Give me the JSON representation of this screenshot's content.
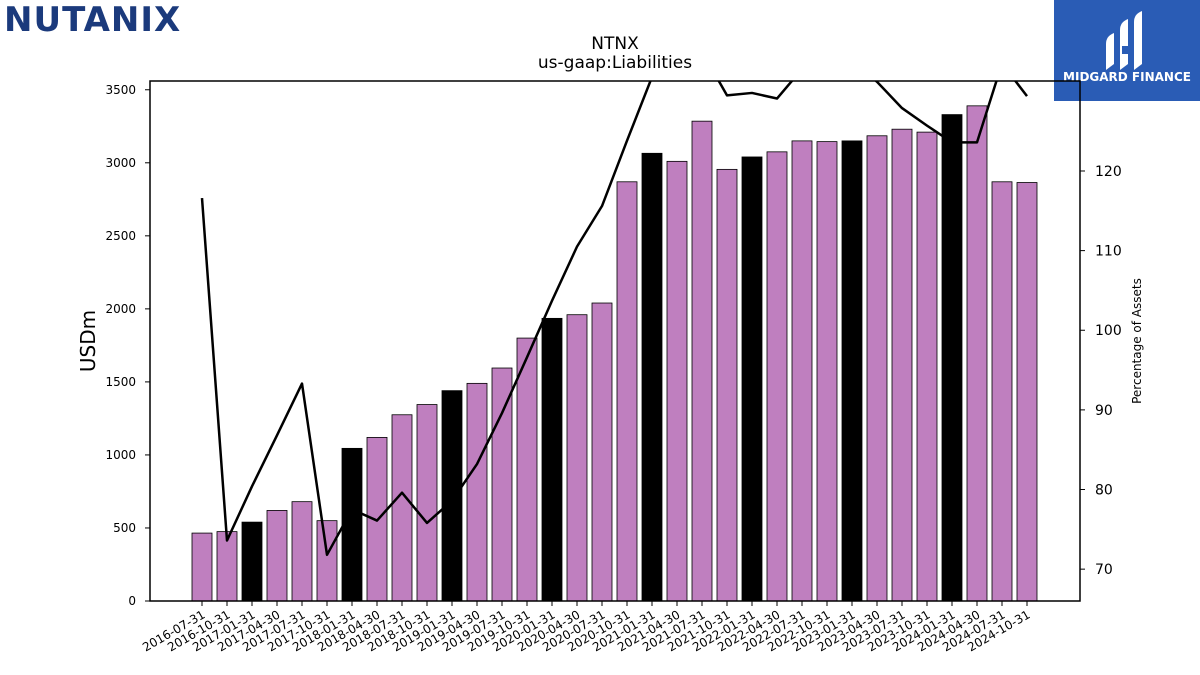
{
  "brand": {
    "logo_text": "NUTANIX",
    "logo_color": "#1b3a7c",
    "logo_accent_color": "#a4c93a",
    "badge_text": "MIDGARD FINANCE",
    "badge_color": "#2a5cb5"
  },
  "chart_data": {
    "type": "bar",
    "title": "NTNX",
    "subtitle": "us-gaap:Liabilities",
    "ylabel": "USDm",
    "y2label": "Percentage of Assets",
    "ylim": [
      0,
      3560
    ],
    "y2lim": [
      66,
      131.3
    ],
    "yticks": [
      "0",
      "500",
      "1000",
      "1500",
      "2000",
      "2500",
      "3000",
      "3500"
    ],
    "y2ticks": [
      "70",
      "80",
      "90",
      "100",
      "110",
      "120"
    ],
    "grid": false,
    "categories": [
      "2016-07-31",
      "2016-10-31",
      "2017-01-31",
      "2017-04-30",
      "2017-07-31",
      "2017-10-31",
      "2018-01-31",
      "2018-04-30",
      "2018-07-31",
      "2018-10-31",
      "2019-01-31",
      "2019-04-30",
      "2019-07-31",
      "2019-10-31",
      "2020-01-31",
      "2020-04-30",
      "2020-07-31",
      "2020-10-31",
      "2021-01-31",
      "2021-04-30",
      "2021-07-31",
      "2021-10-31",
      "2022-01-31",
      "2022-04-30",
      "2022-07-31",
      "2022-10-31",
      "2023-01-31",
      "2023-04-30",
      "2023-07-31",
      "2023-10-31",
      "2024-01-31",
      "2024-04-30",
      "2024-07-31",
      "2024-10-31"
    ],
    "series": [
      {
        "type": "bar",
        "values": [
          465,
          475,
          540,
          620,
          680,
          550,
          1045,
          1120,
          1275,
          1345,
          1440,
          1490,
          1595,
          1800,
          1935,
          1960,
          2040,
          2870,
          3065,
          3010,
          3285,
          2955,
          3040,
          3075,
          3150,
          3145,
          3150,
          3185,
          3230,
          3210,
          3330,
          3390,
          2870,
          2865
        ],
        "colors": [
          "#bf7fbf",
          "#bf7fbf",
          "#000000",
          "#bf7fbf",
          "#bf7fbf",
          "#bf7fbf",
          "#000000",
          "#bf7fbf",
          "#bf7fbf",
          "#bf7fbf",
          "#000000",
          "#bf7fbf",
          "#bf7fbf",
          "#bf7fbf",
          "#000000",
          "#bf7fbf",
          "#bf7fbf",
          "#bf7fbf",
          "#000000",
          "#bf7fbf",
          "#bf7fbf",
          "#bf7fbf",
          "#000000",
          "#bf7fbf",
          "#bf7fbf",
          "#bf7fbf",
          "#000000",
          "#bf7fbf",
          "#bf7fbf",
          "#bf7fbf",
          "#000000",
          "#bf7fbf",
          "#bf7fbf",
          "#bf7fbf"
        ]
      },
      {
        "type": "line",
        "axis": "right",
        "color": "#000000",
        "values": [
          116.6,
          73.6,
          80.4,
          86.8,
          93.3,
          71.8,
          77.5,
          76.1,
          79.6,
          75.8,
          78.6,
          83.2,
          89.6,
          96.6,
          103.7,
          110.5,
          115.6,
          123.8,
          131.8,
          136.5,
          135.0,
          129.5,
          129.8,
          129.1,
          132.8,
          133.5,
          134.0,
          131.2,
          127.9,
          125.7,
          123.6,
          123.6,
          133.5,
          129.4
        ]
      }
    ]
  }
}
